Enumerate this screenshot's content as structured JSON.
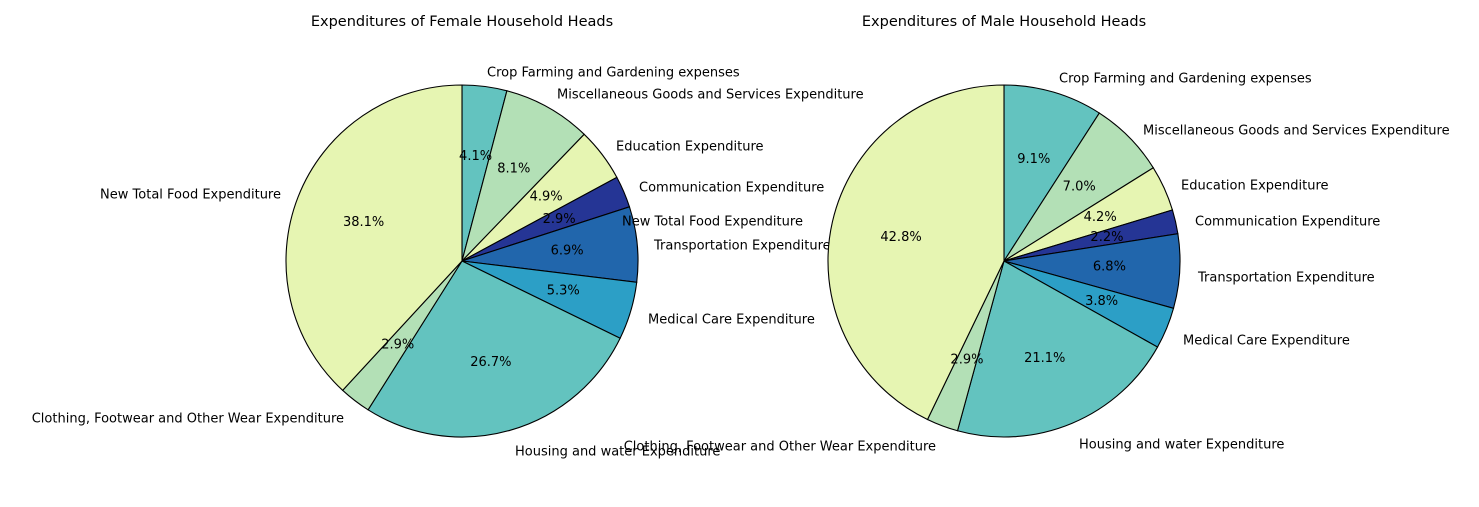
{
  "chart_data": [
    {
      "type": "pie",
      "title": "Expenditures of Female Household Heads",
      "start_angle_deg": 90,
      "direction": "clockwise",
      "labels": [
        "Crop Farming and Gardening expenses",
        "Miscellaneous Goods and Services Expenditure",
        "Education Expenditure",
        "Communication Expenditure",
        "Transportation Expenditure",
        "Medical Care Expenditure",
        "Housing and water Expenditure",
        "Clothing, Footwear and Other Wear Expenditure",
        "New Total Food Expenditure"
      ],
      "values": [
        4.1,
        8.1,
        4.9,
        2.9,
        6.9,
        5.3,
        26.7,
        2.9,
        38.1
      ],
      "value_labels": [
        "4.1%",
        "8.1%",
        "4.9%",
        "2.9%",
        "6.9%",
        "5.3%",
        "26.7%",
        "2.9%",
        "38.1%"
      ],
      "extra_label": "New Total Food Expenditure",
      "colors": [
        "#63c3bf",
        "#b3e0b6",
        "#e6f5b2",
        "#253595",
        "#2166ac",
        "#2c9fc6",
        "#63c3bf",
        "#b3e0b6",
        "#e6f5b2"
      ]
    },
    {
      "type": "pie",
      "title": "Expenditures of Male Household Heads",
      "start_angle_deg": 90,
      "direction": "clockwise",
      "labels": [
        "Crop Farming and Gardening expenses",
        "Miscellaneous Goods and Services Expenditure",
        "Education Expenditure",
        "Communication Expenditure",
        "Transportation Expenditure",
        "Medical Care Expenditure",
        "Housing and water Expenditure",
        "Clothing, Footwear and Other Wear Expenditure",
        "New Total Food Expenditure"
      ],
      "values": [
        9.1,
        7.0,
        4.2,
        2.2,
        6.8,
        3.8,
        21.1,
        2.9,
        42.8
      ],
      "value_labels": [
        "9.1%",
        "7.0%",
        "4.2%",
        "2.2%",
        "6.8%",
        "3.8%",
        "21.1%",
        "2.9%",
        "42.8%"
      ],
      "extra_label": "",
      "colors": [
        "#63c3bf",
        "#b3e0b6",
        "#e6f5b2",
        "#253595",
        "#2166ac",
        "#2c9fc6",
        "#63c3bf",
        "#b3e0b6",
        "#e6f5b2"
      ]
    }
  ]
}
